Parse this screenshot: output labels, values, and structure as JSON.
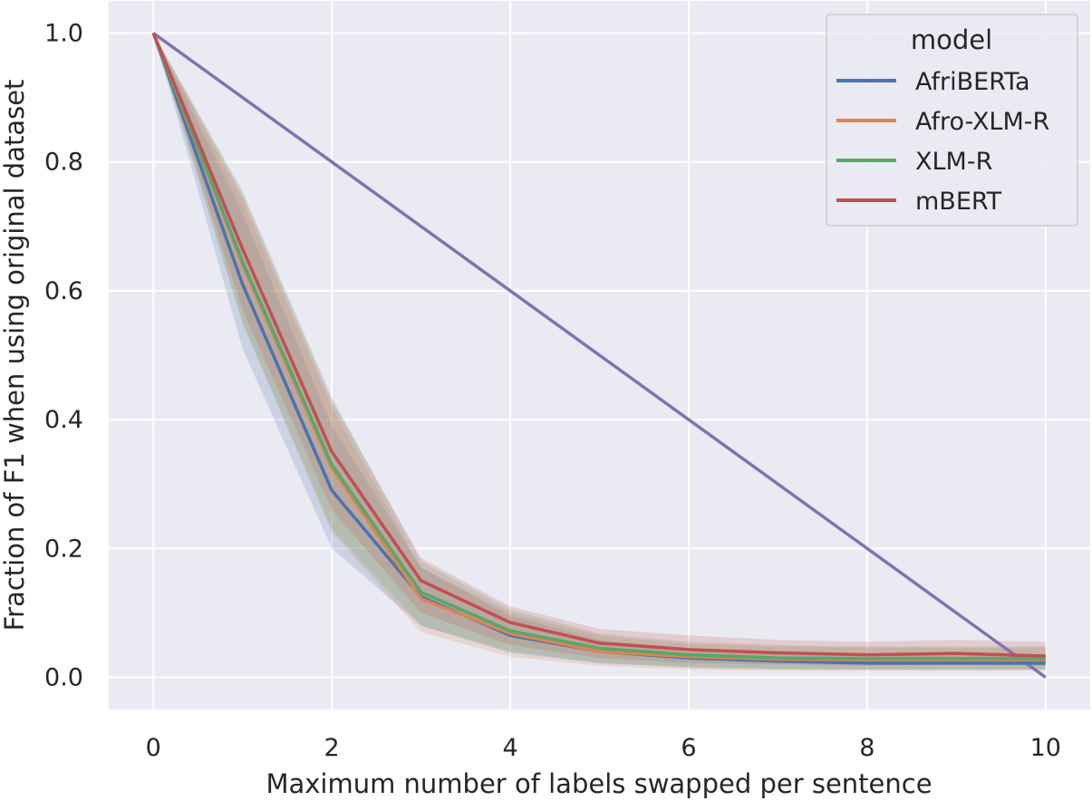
{
  "chart_data": {
    "type": "line",
    "xlabel": "Maximum number of labels swapped per sentence",
    "ylabel": "Fraction of F1 when using original dataset",
    "xlim": [
      -0.5,
      10.5
    ],
    "ylim": [
      -0.05,
      1.05
    ],
    "xticks": [
      "0",
      "2",
      "4",
      "6",
      "8",
      "10"
    ],
    "yticks": [
      "0.0",
      "0.2",
      "0.4",
      "0.6",
      "0.8",
      "1.0"
    ],
    "grid": true,
    "legend": {
      "title": "model",
      "placement": "top-right"
    },
    "x": [
      0,
      1,
      2,
      3,
      4,
      5,
      6,
      7,
      8,
      9,
      10
    ],
    "series": [
      {
        "name": "AfriBERTa",
        "color": "#4c72b0",
        "values": [
          1.0,
          0.61,
          0.29,
          0.125,
          0.065,
          0.04,
          0.03,
          0.025,
          0.022,
          0.022,
          0.022
        ],
        "lower": [
          1.0,
          0.51,
          0.2,
          0.08,
          0.038,
          0.022,
          0.016,
          0.013,
          0.012,
          0.012,
          0.012
        ],
        "upper": [
          1.0,
          0.72,
          0.39,
          0.17,
          0.095,
          0.058,
          0.045,
          0.038,
          0.034,
          0.034,
          0.034
        ]
      },
      {
        "name": "Afro-XLM-R",
        "color": "#dd8452",
        "values": [
          1.0,
          0.64,
          0.325,
          0.122,
          0.068,
          0.04,
          0.032,
          0.028,
          0.027,
          0.027,
          0.027
        ],
        "lower": [
          1.0,
          0.55,
          0.225,
          0.07,
          0.032,
          0.018,
          0.012,
          0.01,
          0.01,
          0.01,
          0.01
        ],
        "upper": [
          1.0,
          0.74,
          0.42,
          0.17,
          0.1,
          0.065,
          0.052,
          0.048,
          0.046,
          0.046,
          0.046
        ]
      },
      {
        "name": "XLM-R",
        "color": "#55a868",
        "values": [
          1.0,
          0.645,
          0.33,
          0.132,
          0.072,
          0.045,
          0.035,
          0.03,
          0.029,
          0.029,
          0.029
        ],
        "lower": [
          1.0,
          0.55,
          0.23,
          0.08,
          0.04,
          0.022,
          0.015,
          0.012,
          0.012,
          0.012,
          0.012
        ],
        "upper": [
          1.0,
          0.755,
          0.435,
          0.18,
          0.105,
          0.068,
          0.055,
          0.05,
          0.048,
          0.048,
          0.048
        ]
      },
      {
        "name": "mBERT",
        "color": "#c44e52",
        "values": [
          1.0,
          0.665,
          0.35,
          0.15,
          0.085,
          0.053,
          0.043,
          0.038,
          0.035,
          0.037,
          0.033
        ],
        "lower": [
          1.0,
          0.57,
          0.26,
          0.1,
          0.05,
          0.03,
          0.022,
          0.02,
          0.018,
          0.02,
          0.018
        ],
        "upper": [
          1.0,
          0.75,
          0.43,
          0.185,
          0.11,
          0.075,
          0.065,
          0.058,
          0.055,
          0.058,
          0.055
        ]
      }
    ],
    "reference_line": {
      "color": "#8172b3",
      "x": [
        0,
        10
      ],
      "y": [
        1.0,
        0.0
      ]
    }
  }
}
